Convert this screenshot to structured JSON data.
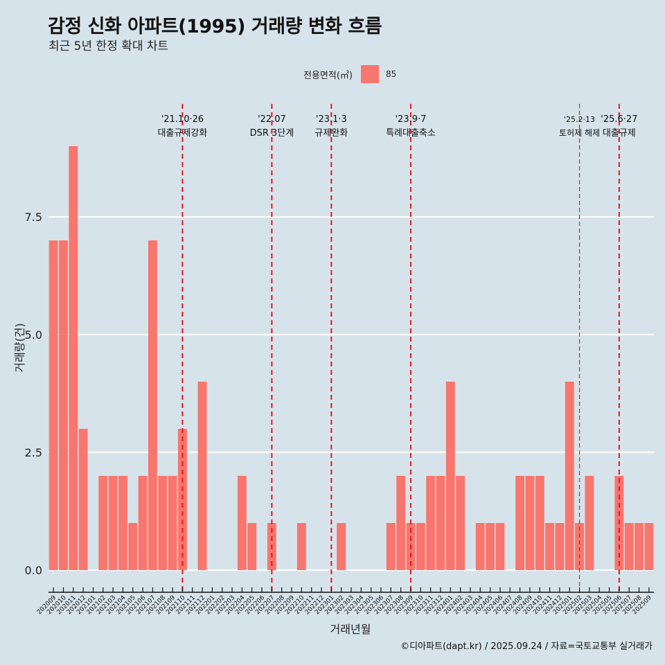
{
  "title": "감정 신화 아파트(1995) 거래량 변화 흐름",
  "subtitle": "최근 5년 한정 확대 차트",
  "legend": {
    "title": "전용면적(㎡)",
    "items": [
      {
        "label": "85",
        "color": "#f8766d"
      }
    ]
  },
  "credit": "©디아파트(dapt.kr) / 2025.09.24 / 자료=국토교통부 실거래가",
  "chart_data": {
    "type": "bar",
    "title": "감정 신화 아파트(1995) 거래량 변화 흐름",
    "subtitle": "최근 5년 한정 확대 차트",
    "xlabel": "거래년월",
    "ylabel": "거래량(건)",
    "ylim": [
      -0.4,
      9.6
    ],
    "yticks": [
      0.0,
      2.5,
      5.0,
      7.5
    ],
    "ytick_labels": [
      "0.0",
      "2.5",
      "5.0",
      "7.5"
    ],
    "grid": "horizontal-major",
    "legend_position": "top",
    "bar_color": "#f8766d",
    "categories": [
      "202009",
      "202010",
      "202011",
      "202012",
      "202101",
      "202102",
      "202103",
      "202104",
      "202105",
      "202106",
      "202107",
      "202108",
      "202109",
      "202110",
      "202111",
      "202112",
      "202201",
      "202202",
      "202203",
      "202204",
      "202205",
      "202206",
      "202207",
      "202208",
      "202209",
      "202210",
      "202211",
      "202212",
      "202301",
      "202302",
      "202303",
      "202304",
      "202305",
      "202306",
      "202307",
      "202308",
      "202309",
      "202310",
      "202311",
      "202312",
      "202401",
      "202402",
      "202403",
      "202404",
      "202405",
      "202406",
      "202407",
      "202408",
      "202409",
      "202410",
      "202411",
      "202412",
      "202501",
      "202502",
      "202503",
      "202504",
      "202505",
      "202506",
      "202507",
      "202508",
      "202509"
    ],
    "series": [
      {
        "name": "85",
        "values": [
          7,
          7,
          9,
          3,
          0,
          2,
          2,
          2,
          1,
          2,
          7,
          2,
          2,
          3,
          0,
          4,
          0,
          0,
          0,
          2,
          1,
          0,
          1,
          0,
          0,
          1,
          0,
          0,
          0,
          1,
          0,
          0,
          0,
          0,
          1,
          2,
          1,
          1,
          2,
          2,
          4,
          2,
          0,
          1,
          1,
          1,
          0,
          2,
          2,
          2,
          1,
          1,
          4,
          1,
          2,
          0,
          0,
          2,
          1,
          1,
          1
        ]
      }
    ],
    "annotations": [
      {
        "category": "202110",
        "date": "'21.10·26",
        "label": "대출규제강화",
        "style": "dashed",
        "color": "#e8141c"
      },
      {
        "category": "202207",
        "date": "'22.07",
        "label": "DSR 3단계",
        "style": "dashed",
        "color": "#e8141c"
      },
      {
        "category": "202301",
        "date": "'23.1·3",
        "label": "규제완화",
        "style": "dashed",
        "color": "#e8141c"
      },
      {
        "category": "202309",
        "date": "'23.9·7",
        "label": "특례대출축소",
        "style": "dashed",
        "color": "#e8141c"
      },
      {
        "category": "202502",
        "date": "'25.2·13",
        "label": "토허제 해제",
        "style": "dashed-thin",
        "color": "#e8141c"
      },
      {
        "category": "202506",
        "date": "'25.6·27",
        "label": "대출규제",
        "style": "dashed",
        "color": "#e8141c"
      }
    ]
  }
}
